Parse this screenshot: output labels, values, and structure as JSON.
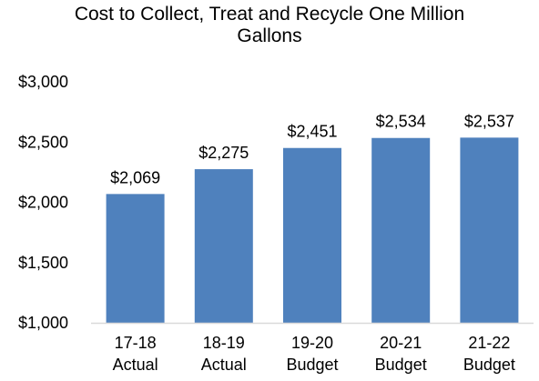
{
  "chart_data": {
    "type": "bar",
    "title_lines": [
      "Cost to Collect, Treat and Recycle One Million",
      "Gallons"
    ],
    "categories": [
      [
        "17-18",
        "Actual"
      ],
      [
        "18-19",
        "Actual"
      ],
      [
        "19-20",
        "Budget"
      ],
      [
        "20-21",
        "Budget"
      ],
      [
        "21-22",
        "Budget"
      ]
    ],
    "values": [
      2069,
      2275,
      2451,
      2534,
      2537
    ],
    "data_labels": [
      "$2,069",
      "$2,275",
      "$2,451",
      "$2,534",
      "$2,537"
    ],
    "ylim": [
      1000,
      3000
    ],
    "yticks": [
      1000,
      1500,
      2000,
      2500,
      3000
    ],
    "ytick_labels": [
      "$1,000",
      "$1,500",
      "$2,000",
      "$2,500",
      "$3,000"
    ],
    "xlabel": "",
    "ylabel": "",
    "grid": false,
    "legend": "none",
    "colors": {
      "bar": "#4F81BD",
      "axis": "#D9D9D9"
    }
  }
}
